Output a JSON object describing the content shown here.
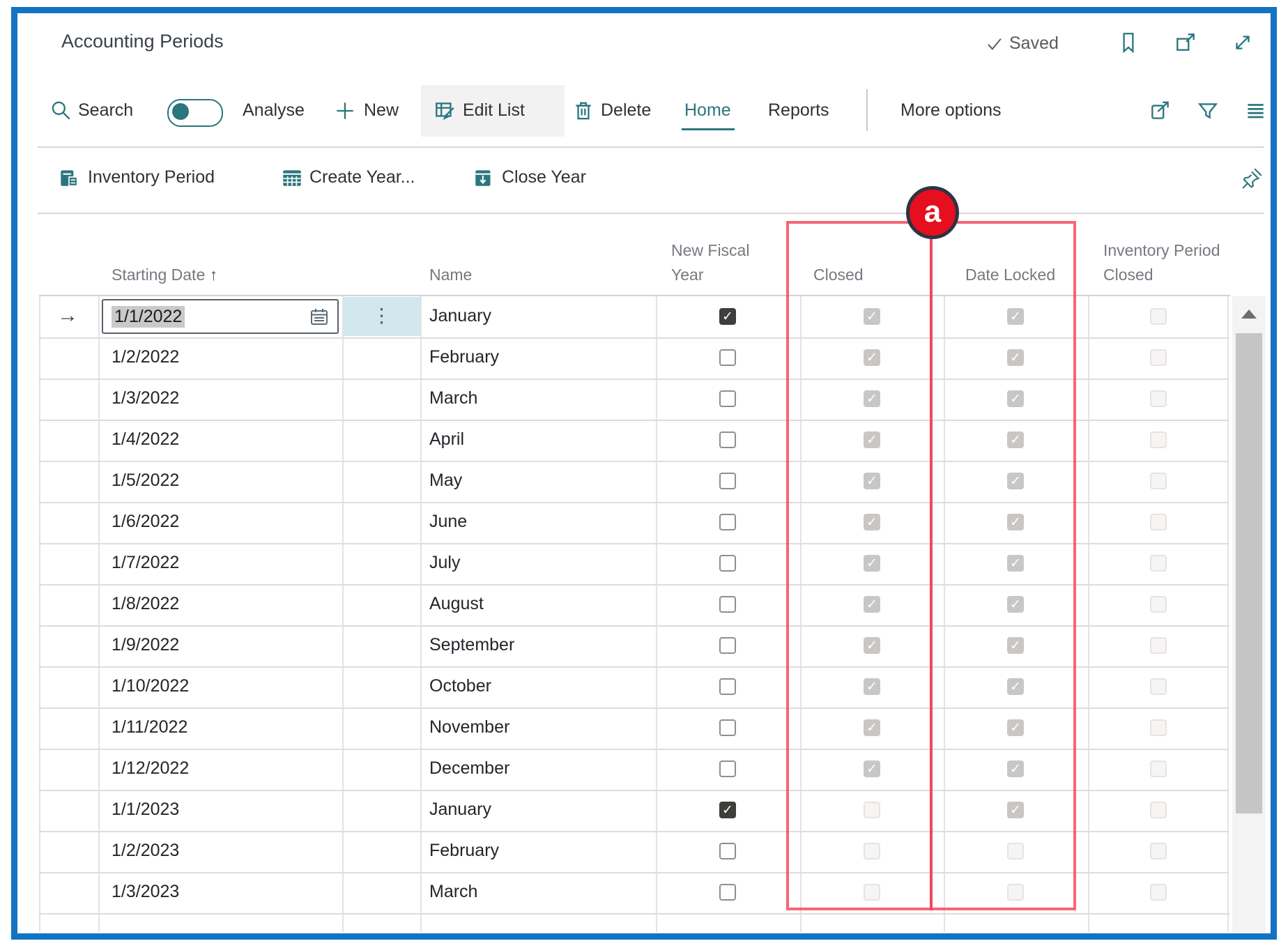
{
  "header": {
    "title": "Accounting Periods",
    "saved_label": "Saved"
  },
  "toolbar": {
    "search_label": "Search",
    "analyse_label": "Analyse",
    "new_label": "New",
    "edit_list_label": "Edit List",
    "delete_label": "Delete",
    "home_label": "Home",
    "reports_label": "Reports",
    "more_options_label": "More options"
  },
  "actions": {
    "inventory_period_label": "Inventory Period",
    "create_year_label": "Create Year...",
    "close_year_label": "Close Year"
  },
  "annotation": {
    "label": "a"
  },
  "table": {
    "columns": {
      "starting_date": "Starting Date",
      "sort_indicator": "↑",
      "name": "Name",
      "new_fiscal_year": "New Fiscal Year",
      "closed": "Closed",
      "date_locked": "Date Locked",
      "inventory_period_closed": "Inventory Period Closed"
    },
    "rows": [
      {
        "starting_date": "1/1/2022",
        "name": "January",
        "new_fiscal_year": "on",
        "closed": "dim-on",
        "date_locked": "dim-on",
        "inventory_period_closed": "dim-off",
        "editing": true
      },
      {
        "starting_date": "1/2/2022",
        "name": "February",
        "new_fiscal_year": "off",
        "closed": "dim-on",
        "date_locked": "dim-on",
        "inventory_period_closed": "dim-off",
        "editing": false
      },
      {
        "starting_date": "1/3/2022",
        "name": "March",
        "new_fiscal_year": "off",
        "closed": "dim-on",
        "date_locked": "dim-on",
        "inventory_period_closed": "dim-off",
        "editing": false
      },
      {
        "starting_date": "1/4/2022",
        "name": "April",
        "new_fiscal_year": "off",
        "closed": "dim-on",
        "date_locked": "dim-on",
        "inventory_period_closed": "dim-off",
        "editing": false
      },
      {
        "starting_date": "1/5/2022",
        "name": "May",
        "new_fiscal_year": "off",
        "closed": "dim-on",
        "date_locked": "dim-on",
        "inventory_period_closed": "dim-off",
        "editing": false
      },
      {
        "starting_date": "1/6/2022",
        "name": "June",
        "new_fiscal_year": "off",
        "closed": "dim-on",
        "date_locked": "dim-on",
        "inventory_period_closed": "dim-off",
        "editing": false
      },
      {
        "starting_date": "1/7/2022",
        "name": "July",
        "new_fiscal_year": "off",
        "closed": "dim-on",
        "date_locked": "dim-on",
        "inventory_period_closed": "dim-off",
        "editing": false
      },
      {
        "starting_date": "1/8/2022",
        "name": "August",
        "new_fiscal_year": "off",
        "closed": "dim-on",
        "date_locked": "dim-on",
        "inventory_period_closed": "dim-off",
        "editing": false
      },
      {
        "starting_date": "1/9/2022",
        "name": "September",
        "new_fiscal_year": "off",
        "closed": "dim-on",
        "date_locked": "dim-on",
        "inventory_period_closed": "dim-off",
        "editing": false
      },
      {
        "starting_date": "1/10/2022",
        "name": "October",
        "new_fiscal_year": "off",
        "closed": "dim-on",
        "date_locked": "dim-on",
        "inventory_period_closed": "dim-off",
        "editing": false
      },
      {
        "starting_date": "1/11/2022",
        "name": "November",
        "new_fiscal_year": "off",
        "closed": "dim-on",
        "date_locked": "dim-on",
        "inventory_period_closed": "dim-off",
        "editing": false
      },
      {
        "starting_date": "1/12/2022",
        "name": "December",
        "new_fiscal_year": "off",
        "closed": "dim-on",
        "date_locked": "dim-on",
        "inventory_period_closed": "dim-off",
        "editing": false
      },
      {
        "starting_date": "1/1/2023",
        "name": "January",
        "new_fiscal_year": "on",
        "closed": "dim-off",
        "date_locked": "dim-on",
        "inventory_period_closed": "dim-off",
        "editing": false
      },
      {
        "starting_date": "1/2/2023",
        "name": "February",
        "new_fiscal_year": "off",
        "closed": "dim-off",
        "date_locked": "dim-off",
        "inventory_period_closed": "dim-off",
        "editing": false
      },
      {
        "starting_date": "1/3/2023",
        "name": "March",
        "new_fiscal_year": "off",
        "closed": "dim-off",
        "date_locked": "dim-off",
        "inventory_period_closed": "dim-off",
        "editing": false
      }
    ]
  },
  "colors": {
    "frame_blue": "#1273c2",
    "accent_teal": "#2b767e",
    "annotation_red": "#e60f1e",
    "annotation_line": "#f44054",
    "grid_gray": "#dcdcdc"
  }
}
